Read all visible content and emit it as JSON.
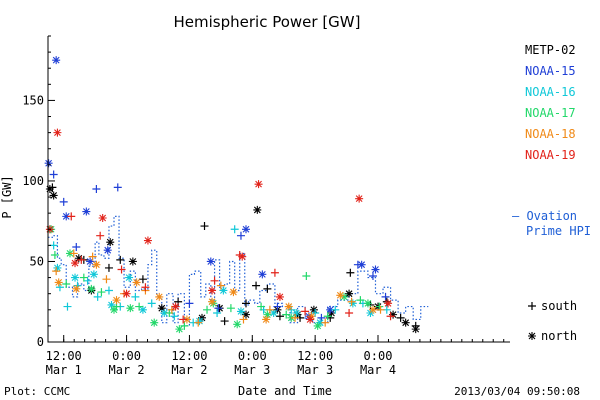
{
  "chart_data": {
    "type": "scatter",
    "title": "Hemispheric Power [GW]",
    "xlabel": "Date and Time",
    "ylabel": "P [GW]",
    "ylim": [
      0,
      190
    ],
    "xlim": [
      0.375,
      4.05
    ],
    "yticks": [
      0,
      50,
      100,
      150
    ],
    "xticks": [
      {
        "t": 0.5,
        "time": "12:00",
        "date": "Mar 1"
      },
      {
        "t": 1.0,
        "time": "0:00",
        "date": "Mar 2"
      },
      {
        "t": 1.5,
        "time": "12:00",
        "date": "Mar 2"
      },
      {
        "t": 2.0,
        "time": "0:00",
        "date": "Mar 3"
      },
      {
        "t": 2.5,
        "time": "12:00",
        "date": "Mar 3"
      },
      {
        "t": 3.0,
        "time": "0:00",
        "date": "Mar 4"
      }
    ],
    "legend_position": "right",
    "series": [
      {
        "name": "METP-02",
        "color": "#000000",
        "south": [
          [
            0.41,
            96
          ],
          [
            0.66,
            51
          ],
          [
            0.86,
            46
          ],
          [
            0.95,
            51
          ],
          [
            1.13,
            39
          ],
          [
            1.41,
            25
          ],
          [
            1.62,
            72
          ],
          [
            1.78,
            13
          ],
          [
            1.95,
            24
          ],
          [
            2.03,
            35
          ],
          [
            2.12,
            33
          ],
          [
            2.22,
            16
          ],
          [
            2.38,
            15
          ],
          [
            2.62,
            15
          ],
          [
            2.78,
            43
          ],
          [
            2.94,
            23
          ],
          [
            3.07,
            25
          ],
          [
            3.18,
            15
          ],
          [
            3.3,
            10
          ]
        ],
        "north": [
          [
            0.39,
            95
          ],
          [
            0.42,
            91
          ],
          [
            0.62,
            52
          ],
          [
            0.72,
            32
          ],
          [
            0.87,
            62
          ],
          [
            1.05,
            50
          ],
          [
            1.28,
            21
          ],
          [
            1.6,
            15
          ],
          [
            1.74,
            21
          ],
          [
            1.95,
            17
          ],
          [
            2.04,
            82
          ],
          [
            2.2,
            20
          ],
          [
            2.36,
            17
          ],
          [
            2.49,
            20
          ],
          [
            2.63,
            18
          ],
          [
            2.77,
            30
          ],
          [
            3.0,
            22
          ],
          [
            3.12,
            17
          ],
          [
            3.22,
            12
          ],
          [
            3.3,
            8
          ]
        ]
      },
      {
        "name": "NOAA-15",
        "color": "#1f3fd6",
        "south": [
          [
            0.42,
            104
          ],
          [
            0.5,
            87
          ],
          [
            0.6,
            59
          ],
          [
            0.76,
            95
          ],
          [
            0.93,
            96
          ],
          [
            1.5,
            24
          ],
          [
            1.73,
            21
          ],
          [
            1.91,
            66
          ],
          [
            2.2,
            22
          ],
          [
            2.55,
            15
          ],
          [
            2.84,
            48
          ],
          [
            2.96,
            41
          ],
          [
            3.06,
            28
          ]
        ],
        "north": [
          [
            0.38,
            111
          ],
          [
            0.44,
            175
          ],
          [
            0.52,
            78
          ],
          [
            0.68,
            81
          ],
          [
            0.71,
            50
          ],
          [
            0.85,
            57
          ],
          [
            1.67,
            50
          ],
          [
            1.95,
            70
          ],
          [
            2.08,
            42
          ],
          [
            2.45,
            16
          ],
          [
            2.62,
            20
          ],
          [
            2.87,
            48
          ],
          [
            2.98,
            45
          ]
        ]
      },
      {
        "name": "NOAA-16",
        "color": "#10c8d8",
        "south": [
          [
            0.42,
            60
          ],
          [
            0.47,
            34
          ],
          [
            0.53,
            22
          ],
          [
            0.61,
            35
          ],
          [
            0.69,
            38
          ],
          [
            0.77,
            28
          ],
          [
            0.86,
            32
          ],
          [
            0.95,
            22
          ],
          [
            1.07,
            28
          ],
          [
            1.2,
            24
          ],
          [
            1.38,
            16
          ],
          [
            1.53,
            12
          ],
          [
            1.72,
            18
          ],
          [
            1.86,
            70
          ],
          [
            2.09,
            20
          ],
          [
            2.31,
            20
          ],
          [
            2.5,
            18
          ],
          [
            2.66,
            20
          ],
          [
            2.88,
            24
          ],
          [
            3.07,
            20
          ]
        ],
        "north": [
          [
            0.45,
            46
          ],
          [
            0.59,
            40
          ],
          [
            0.74,
            42
          ],
          [
            0.88,
            23
          ],
          [
            1.02,
            40
          ],
          [
            1.13,
            20
          ],
          [
            1.3,
            18
          ],
          [
            1.58,
            13
          ],
          [
            1.77,
            32
          ],
          [
            1.91,
            19
          ],
          [
            2.17,
            18
          ],
          [
            2.35,
            18
          ],
          [
            2.54,
            12
          ],
          [
            2.8,
            24
          ],
          [
            2.94,
            18
          ]
        ]
      },
      {
        "name": "NOAA-17",
        "color": "#22d86a",
        "south": [
          [
            0.43,
            54
          ],
          [
            0.52,
            36
          ],
          [
            0.66,
            40
          ],
          [
            0.8,
            31
          ],
          [
            0.92,
            22
          ],
          [
            1.1,
            22
          ],
          [
            1.34,
            18
          ],
          [
            1.46,
            10
          ],
          [
            1.64,
            20
          ],
          [
            1.83,
            21
          ],
          [
            2.07,
            22
          ],
          [
            2.27,
            17
          ],
          [
            2.43,
            41
          ],
          [
            2.6,
            16
          ],
          [
            2.86,
            26
          ],
          [
            3.01,
            22
          ]
        ],
        "north": [
          [
            0.4,
            70
          ],
          [
            0.55,
            55
          ],
          [
            0.72,
            33
          ],
          [
            0.9,
            20
          ],
          [
            1.03,
            21
          ],
          [
            1.22,
            12
          ],
          [
            1.42,
            8
          ],
          [
            1.69,
            24
          ],
          [
            1.88,
            11
          ],
          [
            2.12,
            17
          ],
          [
            2.31,
            15
          ],
          [
            2.52,
            10
          ],
          [
            2.73,
            28
          ],
          [
            2.92,
            24
          ]
        ]
      },
      {
        "name": "NOAA-18",
        "color": "#f08a18",
        "south": [
          [
            0.44,
            44
          ],
          [
            0.58,
            55
          ],
          [
            0.73,
            53
          ],
          [
            0.84,
            39
          ],
          [
            0.98,
            30
          ],
          [
            1.15,
            32
          ],
          [
            1.36,
            20
          ],
          [
            1.57,
            12
          ],
          [
            1.75,
            35
          ],
          [
            1.93,
            14
          ],
          [
            2.14,
            20
          ],
          [
            2.34,
            15
          ],
          [
            2.58,
            12
          ],
          [
            2.79,
            25
          ],
          [
            3.02,
            20
          ]
        ],
        "north": [
          [
            0.46,
            37
          ],
          [
            0.6,
            33
          ],
          [
            0.76,
            48
          ],
          [
            0.92,
            26
          ],
          [
            1.08,
            37
          ],
          [
            1.26,
            28
          ],
          [
            1.48,
            14
          ],
          [
            1.68,
            25
          ],
          [
            1.85,
            31
          ],
          [
            2.11,
            14
          ],
          [
            2.29,
            22
          ],
          [
            2.47,
            16
          ],
          [
            2.7,
            29
          ],
          [
            2.96,
            20
          ]
        ]
      },
      {
        "name": "NOAA-19",
        "color": "#e2231a",
        "south": [
          [
            0.56,
            78
          ],
          [
            0.64,
            51
          ],
          [
            0.79,
            66
          ],
          [
            0.96,
            45
          ],
          [
            1.15,
            34
          ],
          [
            1.45,
            14
          ],
          [
            1.7,
            38
          ],
          [
            1.9,
            54
          ],
          [
            2.18,
            43
          ],
          [
            2.42,
            19
          ],
          [
            2.77,
            18
          ],
          [
            3.1,
            16
          ]
        ],
        "north": [
          [
            0.39,
            70
          ],
          [
            0.45,
            130
          ],
          [
            0.59,
            49
          ],
          [
            0.81,
            77
          ],
          [
            1.0,
            30
          ],
          [
            1.17,
            63
          ],
          [
            1.39,
            22
          ],
          [
            1.68,
            32
          ],
          [
            1.92,
            53
          ],
          [
            2.05,
            98
          ],
          [
            2.22,
            28
          ],
          [
            2.46,
            14
          ],
          [
            2.85,
            89
          ],
          [
            3.08,
            24
          ]
        ]
      }
    ],
    "ovation": {
      "label_lines": [
        "— Ovation",
        "Prime HPI"
      ],
      "color": "#1f5fd6",
      "values": [
        [
          0.375,
          65
        ],
        [
          0.41,
          66
        ],
        [
          0.45,
          52
        ],
        [
          0.48,
          48
        ],
        [
          0.52,
          34
        ],
        [
          0.57,
          28
        ],
        [
          0.61,
          36
        ],
        [
          0.66,
          32
        ],
        [
          0.7,
          47
        ],
        [
          0.75,
          62
        ],
        [
          0.78,
          54
        ],
        [
          0.82,
          52
        ],
        [
          0.86,
          72
        ],
        [
          0.9,
          78
        ],
        [
          0.94,
          52
        ],
        [
          0.98,
          34
        ],
        [
          1.03,
          44
        ],
        [
          1.07,
          32
        ],
        [
          1.12,
          33
        ],
        [
          1.17,
          48
        ],
        [
          1.2,
          57
        ],
        [
          1.24,
          28
        ],
        [
          1.28,
          12
        ],
        [
          1.32,
          30
        ],
        [
          1.37,
          12
        ],
        [
          1.41,
          30
        ],
        [
          1.46,
          10
        ],
        [
          1.5,
          42
        ],
        [
          1.54,
          44
        ],
        [
          1.59,
          28
        ],
        [
          1.63,
          36
        ],
        [
          1.67,
          26
        ],
        [
          1.7,
          51
        ],
        [
          1.74,
          34
        ],
        [
          1.78,
          36
        ],
        [
          1.82,
          50
        ],
        [
          1.86,
          32
        ],
        [
          1.9,
          55
        ],
        [
          1.94,
          23
        ],
        [
          1.97,
          26
        ],
        [
          2.02,
          24
        ],
        [
          2.06,
          32
        ],
        [
          2.12,
          36
        ],
        [
          2.18,
          24
        ],
        [
          2.24,
          22
        ],
        [
          2.3,
          12
        ],
        [
          2.36,
          22
        ],
        [
          2.42,
          14
        ],
        [
          2.48,
          12
        ],
        [
          2.54,
          12
        ],
        [
          2.6,
          22
        ],
        [
          2.68,
          26
        ],
        [
          2.76,
          30
        ],
        [
          2.84,
          44
        ],
        [
          2.92,
          40
        ],
        [
          2.98,
          30
        ],
        [
          3.04,
          34
        ],
        [
          3.1,
          26
        ],
        [
          3.16,
          18
        ],
        [
          3.22,
          22
        ],
        [
          3.28,
          14
        ],
        [
          3.34,
          22
        ],
        [
          3.4,
          22
        ]
      ]
    },
    "symbol_key": [
      {
        "symbol": "+",
        "label": "south"
      },
      {
        "symbol": "*",
        "label": "north"
      }
    ]
  },
  "footer": {
    "plot_credit": "Plot: CCMC",
    "timestamp": "2013/03/04 09:50:08"
  }
}
